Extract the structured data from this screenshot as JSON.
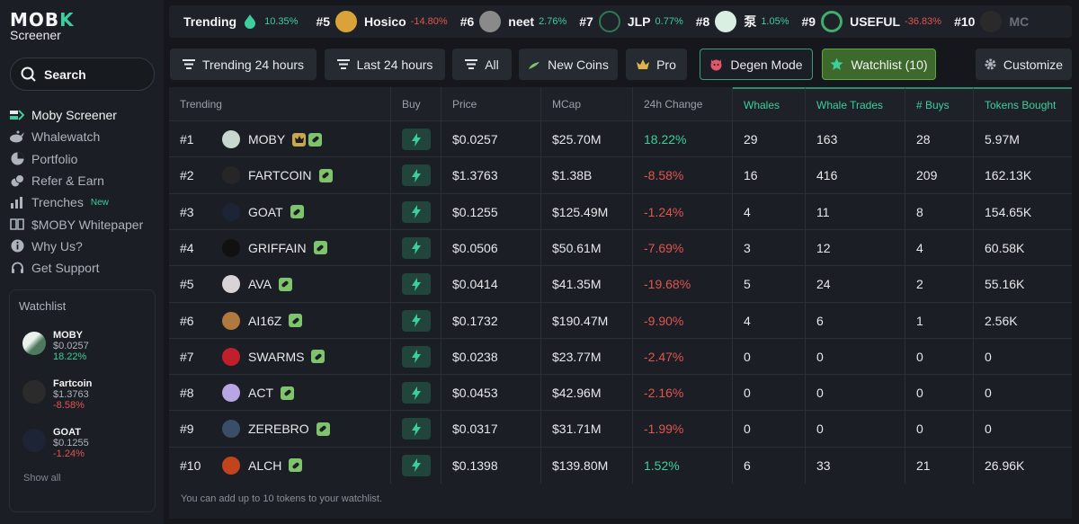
{
  "brand": {
    "logo_text": "MOBY",
    "sub": "Screener"
  },
  "search": {
    "label": "Search"
  },
  "nav": [
    {
      "label": "Moby Screener",
      "icon": "moby-logo-icon",
      "badge": ""
    },
    {
      "label": "Whalewatch",
      "icon": "whale-icon",
      "badge": ""
    },
    {
      "label": "Portfolio",
      "icon": "pie-chart-icon",
      "badge": ""
    },
    {
      "label": "Refer & Earn",
      "icon": "coins-icon",
      "badge": ""
    },
    {
      "label": "Trenches",
      "icon": "bar-chart-icon",
      "badge": "New"
    },
    {
      "label": "$MOBY Whitepaper",
      "icon": "book-icon",
      "badge": ""
    },
    {
      "label": "Why Us?",
      "icon": "info-icon",
      "badge": ""
    },
    {
      "label": "Get Support",
      "icon": "headset-icon",
      "badge": ""
    }
  ],
  "watchlist_panel": {
    "title": "Watchlist",
    "items": [
      {
        "name": "MOBY",
        "price": "$0.0257",
        "change": "18.22%",
        "dir": "pos",
        "color": "#c8d8cf"
      },
      {
        "name": "Fartcoin",
        "price": "$1.3763",
        "change": "-8.58%",
        "dir": "neg",
        "color": "#2b2b2b"
      },
      {
        "name": "GOAT",
        "price": "$0.1255",
        "change": "-1.24%",
        "dir": "neg",
        "color": "#1c2436"
      }
    ],
    "show_all": "Show all"
  },
  "ticker": {
    "label": "Trending",
    "first_change": "10.35%",
    "items": [
      {
        "rank": "#5",
        "name": "Hosico",
        "change": "-14.80%",
        "dir": "neg",
        "color": "#d9a33a"
      },
      {
        "rank": "#6",
        "name": "neet",
        "change": "2.76%",
        "dir": "pos",
        "color": "#8a8a8a"
      },
      {
        "rank": "#7",
        "name": "JLP",
        "change": "0.77%",
        "dir": "pos",
        "color": "#2f7a55"
      },
      {
        "rank": "#8",
        "name": "泵",
        "change": "1.05%",
        "dir": "pos",
        "color": "#d8efe2"
      },
      {
        "rank": "#9",
        "name": "USEFUL",
        "change": "-36.83%",
        "dir": "neg",
        "color": "#3fae6e"
      },
      {
        "rank": "#10",
        "name": "MC",
        "change": "",
        "dir": "pos",
        "color": "#2a2a2a"
      }
    ]
  },
  "filters": {
    "trending_24h": "Trending 24 hours",
    "last_24h": "Last 24 hours",
    "all": "All",
    "new_coins": "New Coins",
    "pro": "Pro",
    "degen": "Degen Mode",
    "watchlist": "Watchlist (10)",
    "customize": "Customize"
  },
  "table": {
    "headers": {
      "trending": "Trending",
      "buy": "Buy",
      "price": "Price",
      "mcap": "MCap",
      "change": "24h Change",
      "whales": "Whales",
      "whale_trades": "Whale Trades",
      "buys": "# Buys",
      "tokens_bought": "Tokens Bought"
    },
    "rows": [
      {
        "rank": "#1",
        "name": "MOBY",
        "price": "$0.0257",
        "mcap": "$25.70M",
        "change": "18.22%",
        "dir": "pos",
        "whales": "29",
        "whale_trades": "163",
        "buys": "28",
        "tokens_bought": "5.97M",
        "color": "#c8d8cf",
        "crown": true
      },
      {
        "rank": "#2",
        "name": "FARTCOIN",
        "price": "$1.3763",
        "mcap": "$1.38B",
        "change": "-8.58%",
        "dir": "neg",
        "whales": "16",
        "whale_trades": "416",
        "buys": "209",
        "tokens_bought": "162.13K",
        "color": "#262626",
        "crown": false
      },
      {
        "rank": "#3",
        "name": "GOAT",
        "price": "$0.1255",
        "mcap": "$125.49M",
        "change": "-1.24%",
        "dir": "neg",
        "whales": "4",
        "whale_trades": "11",
        "buys": "8",
        "tokens_bought": "154.65K",
        "color": "#1c2436",
        "crown": false
      },
      {
        "rank": "#4",
        "name": "GRIFFAIN",
        "price": "$0.0506",
        "mcap": "$50.61M",
        "change": "-7.69%",
        "dir": "neg",
        "whales": "3",
        "whale_trades": "12",
        "buys": "4",
        "tokens_bought": "60.58K",
        "color": "#111111",
        "crown": false
      },
      {
        "rank": "#5",
        "name": "AVA",
        "price": "$0.0414",
        "mcap": "$41.35M",
        "change": "-19.68%",
        "dir": "neg",
        "whales": "5",
        "whale_trades": "24",
        "buys": "2",
        "tokens_bought": "55.16K",
        "color": "#d9d2d6",
        "crown": false
      },
      {
        "rank": "#6",
        "name": "AI16Z",
        "price": "$0.1732",
        "mcap": "$190.47M",
        "change": "-9.90%",
        "dir": "neg",
        "whales": "4",
        "whale_trades": "6",
        "buys": "1",
        "tokens_bought": "2.56K",
        "color": "#b07a3f",
        "crown": false
      },
      {
        "rank": "#7",
        "name": "SWARMS",
        "price": "$0.0238",
        "mcap": "$23.77M",
        "change": "-2.47%",
        "dir": "neg",
        "whales": "0",
        "whale_trades": "0",
        "buys": "0",
        "tokens_bought": "0",
        "color": "#c21f2d",
        "crown": false
      },
      {
        "rank": "#8",
        "name": "ACT",
        "price": "$0.0453",
        "mcap": "$42.96M",
        "change": "-2.16%",
        "dir": "neg",
        "whales": "0",
        "whale_trades": "0",
        "buys": "0",
        "tokens_bought": "0",
        "color": "#b7a6e3",
        "crown": false
      },
      {
        "rank": "#9",
        "name": "ZEREBRO",
        "price": "$0.0317",
        "mcap": "$31.71M",
        "change": "-1.99%",
        "dir": "neg",
        "whales": "0",
        "whale_trades": "0",
        "buys": "0",
        "tokens_bought": "0",
        "color": "#3a4e6a",
        "crown": false
      },
      {
        "rank": "#10",
        "name": "ALCH",
        "price": "$0.1398",
        "mcap": "$139.80M",
        "change": "1.52%",
        "dir": "pos",
        "whales": "6",
        "whale_trades": "33",
        "buys": "21",
        "tokens_bought": "26.96K",
        "color": "#c2441d",
        "crown": false
      }
    ],
    "footnote": "You can add up to 10 tokens to your watchlist."
  },
  "colors": {
    "accent": "#3ccf9d",
    "positive": "#3ccf9d",
    "negative": "#e0564f",
    "watchlist_active": "#3d6a2c"
  }
}
